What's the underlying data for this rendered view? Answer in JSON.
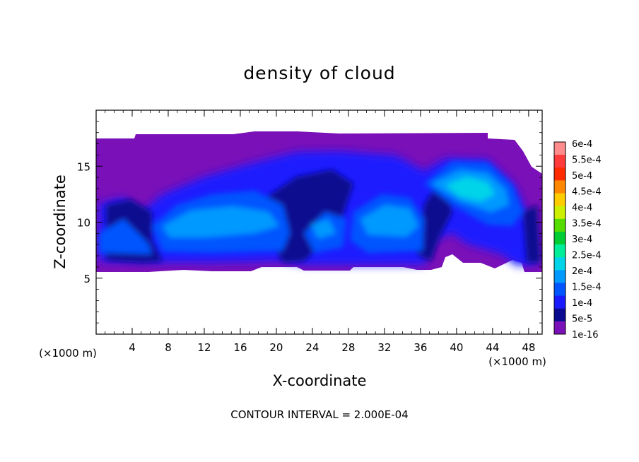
{
  "chart_data": {
    "type": "heatmap",
    "title": "density of cloud",
    "xlabel": "X-coordinate",
    "ylabel": "Z-coordinate",
    "x_unit": "(×1000 m)",
    "z_unit": "(×1000 m)",
    "xlim": [
      0,
      49.5
    ],
    "ylim": [
      0,
      20
    ],
    "x_ticks": [
      4,
      8,
      12,
      16,
      20,
      24,
      28,
      32,
      36,
      40,
      44,
      48
    ],
    "y_ticks": [
      5,
      10,
      15
    ],
    "footer": "CONTOUR INTERVAL = 2.000E-04",
    "colorbar": {
      "labels": [
        "6e-4",
        "5.5e-4",
        "5e-4",
        "4.5e-4",
        "4e-4",
        "3.5e-4",
        "3e-4",
        "2.5e-4",
        "2e-4",
        "1.5e-4",
        "1e-4",
        "5e-5",
        "1e-16"
      ],
      "colors": [
        "#ff8c8c",
        "#ff3b3b",
        "#ff2a00",
        "#ff8800",
        "#ffcc00",
        "#ccf000",
        "#55dd00",
        "#00cc33",
        "#00ee99",
        "#00d4e8",
        "#0099ff",
        "#0055ff",
        "#1a1aff",
        "#0a0a90",
        "#7a10b8"
      ]
    },
    "cloud_layer": {
      "base_km": 5.6,
      "top_km": 17.5
    }
  }
}
